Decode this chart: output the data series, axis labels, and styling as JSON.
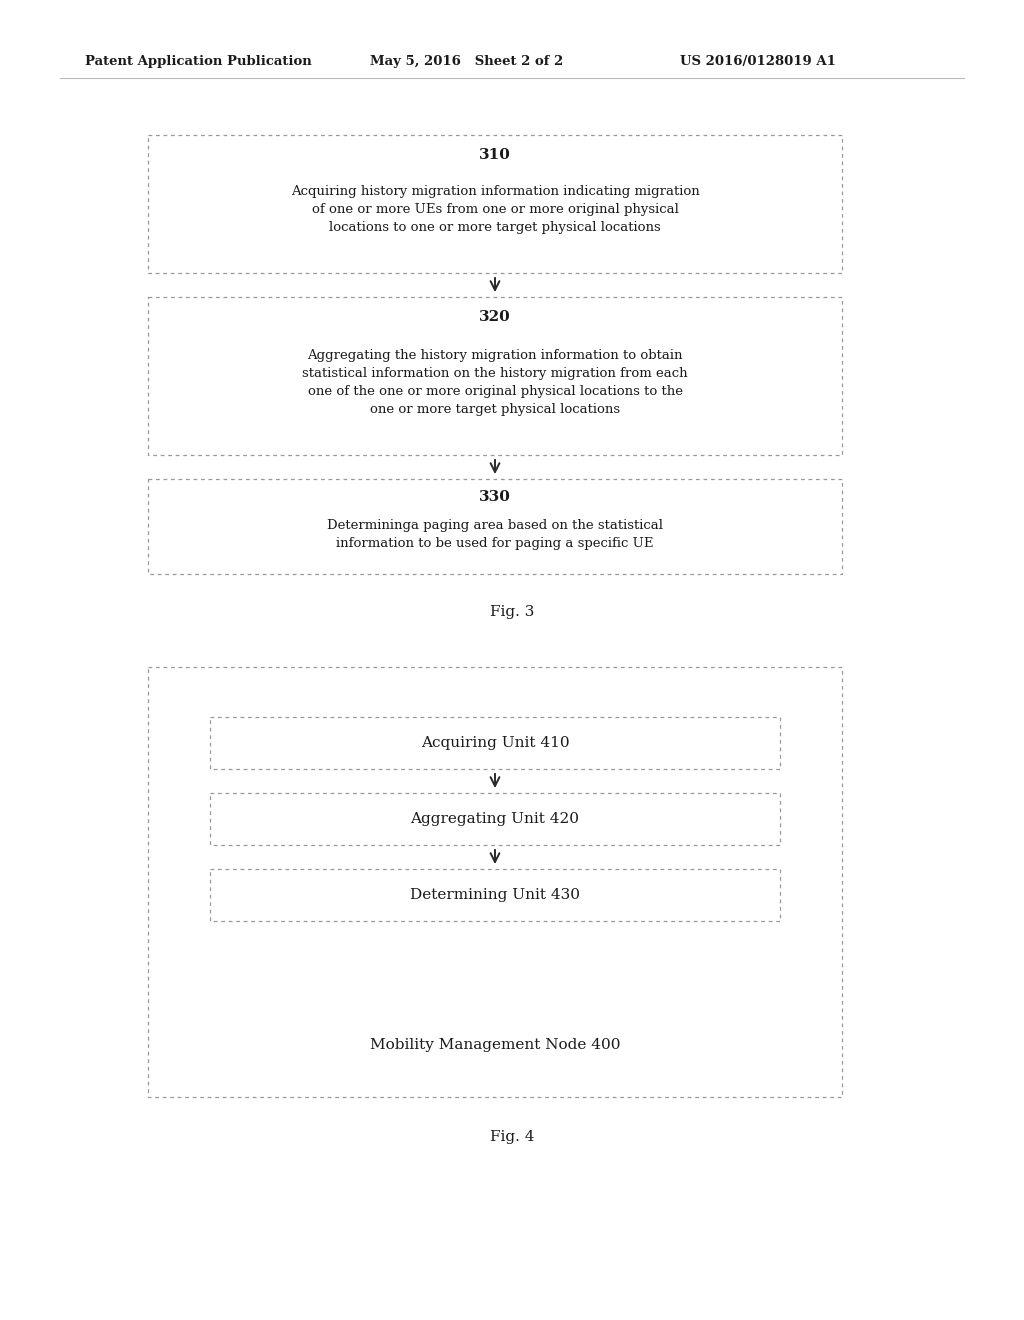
{
  "header_left": "Patent Application Publication",
  "header_mid": "May 5, 2016   Sheet 2 of 2",
  "header_right": "US 2016/0128019 A1",
  "fig3_label": "Fig. 3",
  "fig4_label": "Fig. 4",
  "box310_title": "310",
  "box310_text": "Acquiring history migration information indicating migration\nof one or more UEs from one or more original physical\nlocations to one or more target physical locations",
  "box320_title": "320",
  "box320_text": "Aggregating the history migration information to obtain\nstatistical information on the history migration from each\none of the one or more original physical locations to the\none or more target physical locations",
  "box330_title": "330",
  "box330_text": "Determininga paging area based on the statistical\ninformation to be used for paging a specific UE",
  "box410_text": "Acquiring Unit 410",
  "box420_text": "Aggregating Unit 420",
  "box430_text": "Determining Unit 430",
  "node_label": "Mobility Management Node 400",
  "bg_color": "#ffffff",
  "text_color": "#1a1a1a",
  "box_edge_color": "#999999",
  "header_fontsize": 9.5,
  "title_fontsize": 11,
  "body_fontsize": 9.5,
  "fig4_unit_fontsize": 11,
  "fig_label_fontsize": 11
}
